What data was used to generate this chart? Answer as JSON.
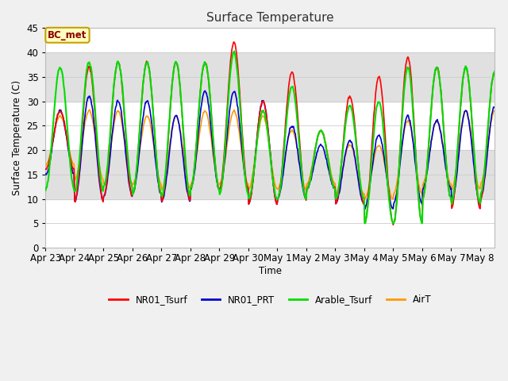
{
  "title": "Surface Temperature",
  "ylabel": "Surface Temperature (C)",
  "xlabel": "Time",
  "annotation": "BC_met",
  "ylim": [
    0,
    45
  ],
  "fig_bg_color": "#f0f0f0",
  "plot_bg_color": "#ffffff",
  "series_colors": {
    "NR01_Tsurf": "#ff0000",
    "NR01_PRT": "#0000cc",
    "Arable_Tsurf": "#00dd00",
    "AirT": "#ff9900"
  },
  "x_tick_labels": [
    "Apr 23",
    "Apr 24",
    "Apr 25",
    "Apr 26",
    "Apr 27",
    "Apr 28",
    "Apr 29",
    "Apr 30",
    "May 1",
    "May 2",
    "May 3",
    "May 4",
    "May 5",
    "May 6",
    "May 7",
    "May 8"
  ],
  "band_color": "#e0e0e0",
  "grid_color": "#cccccc",
  "peak_NR01": [
    28,
    37,
    38,
    38,
    38,
    38,
    42,
    30,
    36,
    24,
    31,
    35,
    39,
    37,
    37,
    36
  ],
  "trough_NR01": [
    16,
    9.5,
    10.5,
    11,
    9.5,
    12,
    12,
    9,
    10,
    12,
    9,
    5,
    5,
    10,
    8,
    10
  ],
  "peak_PRT": [
    28,
    31,
    30,
    30,
    27,
    32,
    32,
    30,
    25,
    21,
    22,
    23,
    27,
    26,
    28,
    29
  ],
  "trough_PRT": [
    15,
    9.5,
    10.5,
    11,
    9.5,
    12,
    12,
    9,
    10,
    12,
    9,
    8,
    9,
    12,
    9,
    10
  ],
  "peak_Arable": [
    37,
    38,
    38,
    38,
    38,
    38,
    40,
    28,
    33,
    24,
    29,
    30,
    37,
    37,
    37,
    36
  ],
  "trough_Arable": [
    12,
    11.5,
    12.5,
    11,
    10.5,
    12,
    11,
    10,
    10,
    12,
    10,
    5,
    5,
    10,
    9,
    11
  ],
  "peak_AirT": [
    27,
    28,
    28,
    27,
    27,
    28,
    28,
    27,
    24,
    24,
    21,
    21,
    26,
    26,
    28,
    28
  ],
  "trough_AirT": [
    17,
    14,
    13,
    13,
    12,
    13,
    13,
    12,
    12,
    13,
    11,
    10,
    11,
    13,
    12,
    13
  ]
}
